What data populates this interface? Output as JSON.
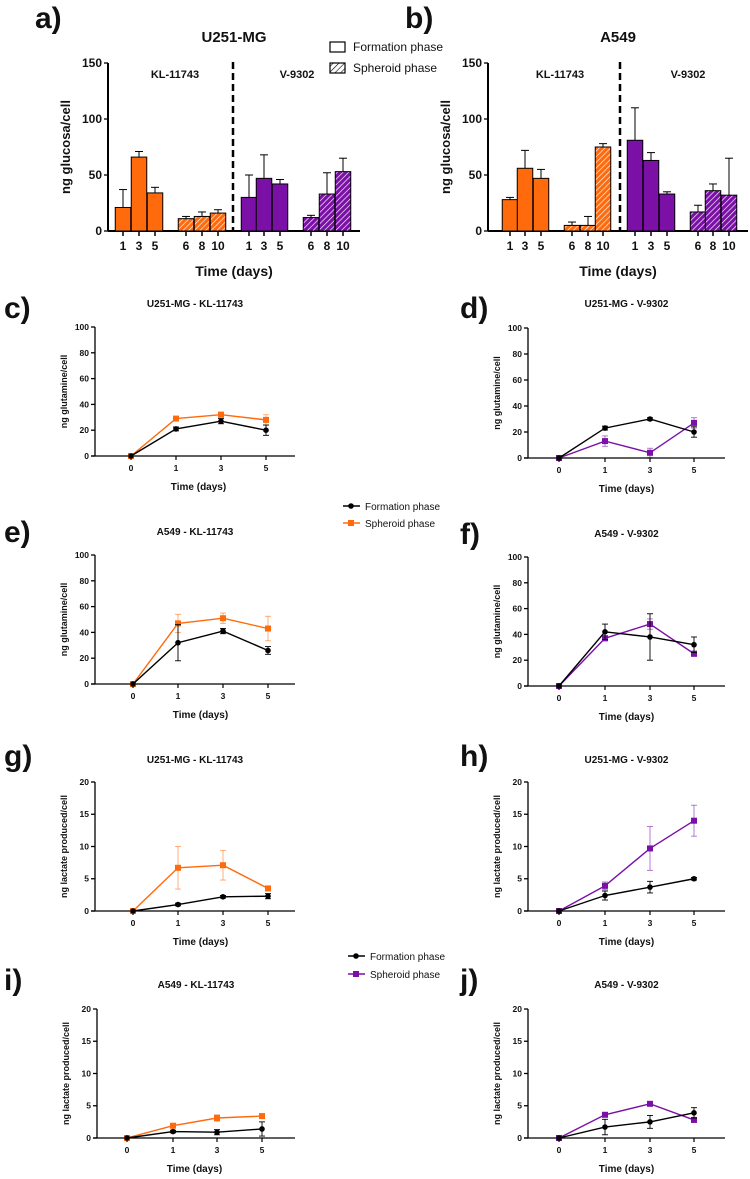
{
  "colors": {
    "orange": "#FF6A0D",
    "purple": "#7A10A6",
    "black": "#000000"
  },
  "legends": {
    "bars": {
      "items": [
        "Formation phase",
        "Spheroid phase"
      ],
      "fill": [
        "open",
        "hatched"
      ]
    },
    "glutamine": {
      "items": [
        "Formation phase",
        "Spheroid phase"
      ],
      "markers": [
        "circle",
        "square"
      ],
      "colors": [
        "#000000",
        "#FF6A0D"
      ]
    },
    "lactate": {
      "items": [
        "Formation phase",
        "Spheroid phase"
      ],
      "markers": [
        "circle",
        "square"
      ],
      "colors": [
        "#000000",
        "#7A10A6"
      ]
    }
  },
  "chart_data": [
    {
      "letter": "a)",
      "type": "bar",
      "title": "U251-MG",
      "ylabel": "ng glucosa/cell",
      "xlabel": "Time (days)",
      "ylim": [
        0,
        150
      ],
      "yticks": [
        0,
        50,
        100,
        150
      ],
      "groups": [
        {
          "label": "KL-11743",
          "color": "#FF6A0D",
          "phases": [
            {
              "phase": "Formation phase",
              "days": [
                1,
                3,
                5
              ],
              "values": [
                21,
                66,
                34
              ],
              "error_top": [
                37,
                71,
                39
              ]
            },
            {
              "phase": "Spheroid phase",
              "days": [
                6,
                8,
                10
              ],
              "values": [
                11,
                13,
                16
              ],
              "error_top": [
                13,
                17,
                19
              ]
            }
          ]
        },
        {
          "label": "V-9302",
          "color": "#7A10A6",
          "phases": [
            {
              "phase": "Formation phase",
              "days": [
                1,
                3,
                5
              ],
              "values": [
                30,
                47,
                42
              ],
              "error_top": [
                50,
                68,
                46
              ]
            },
            {
              "phase": "Spheroid phase",
              "days": [
                6,
                8,
                10
              ],
              "values": [
                12,
                33,
                53
              ],
              "error_top": [
                14,
                52,
                65
              ]
            }
          ]
        }
      ]
    },
    {
      "letter": "b)",
      "type": "bar",
      "title": "A549",
      "ylabel": "ng glucosa/cell",
      "xlabel": "Time (days)",
      "ylim": [
        0,
        150
      ],
      "yticks": [
        0,
        50,
        100,
        150
      ],
      "groups": [
        {
          "label": "KL-11743",
          "color": "#FF6A0D",
          "phases": [
            {
              "phase": "Formation phase",
              "days": [
                1,
                3,
                5
              ],
              "values": [
                28,
                56,
                47
              ],
              "error_top": [
                30,
                72,
                55
              ]
            },
            {
              "phase": "Spheroid phase",
              "days": [
                6,
                8,
                10
              ],
              "values": [
                5,
                5,
                75
              ],
              "error_top": [
                8,
                13,
                78
              ]
            }
          ]
        },
        {
          "label": "V-9302",
          "color": "#7A10A6",
          "phases": [
            {
              "phase": "Formation phase",
              "days": [
                1,
                3,
                5
              ],
              "values": [
                81,
                63,
                33
              ],
              "error_top": [
                110,
                70,
                35
              ]
            },
            {
              "phase": "Spheroid phase",
              "days": [
                6,
                8,
                10
              ],
              "values": [
                17,
                36,
                32
              ],
              "error_top": [
                23,
                42,
                65
              ]
            }
          ]
        }
      ]
    },
    {
      "letter": "c)",
      "type": "line",
      "title": "U251-MG - KL-11743",
      "ylabel": "ng glutamine/cell",
      "xlabel": "Time (days)",
      "ylim": [
        0,
        100
      ],
      "yticks": [
        0,
        20,
        40,
        60,
        80,
        100
      ],
      "x": [
        0,
        1,
        3,
        5
      ],
      "series": [
        {
          "name": "Formation phase",
          "color": "#000000",
          "values": [
            0,
            21,
            27,
            20
          ],
          "error": [
            0,
            1.5,
            2,
            4
          ]
        },
        {
          "name": "Spheroid phase",
          "color": "#FF6A0D",
          "values": [
            0,
            29,
            32,
            28
          ],
          "error": [
            0,
            1.5,
            2,
            4
          ]
        }
      ]
    },
    {
      "letter": "d)",
      "type": "line",
      "title": "U251-MG - V-9302",
      "ylabel": "ng glutamine/cell",
      "xlabel": "Time (days)",
      "ylim": [
        0,
        100
      ],
      "yticks": [
        0,
        20,
        40,
        60,
        80,
        100
      ],
      "x": [
        0,
        1,
        3,
        5
      ],
      "series": [
        {
          "name": "Formation phase",
          "color": "#000000",
          "values": [
            0,
            23,
            30,
            20
          ],
          "error": [
            0,
            1.5,
            1,
            4
          ]
        },
        {
          "name": "Spheroid phase",
          "color": "#7A10A6",
          "values": [
            0,
            13,
            4,
            27
          ],
          "error": [
            0,
            4,
            3.5,
            4
          ]
        }
      ]
    },
    {
      "letter": "e)",
      "type": "line",
      "title": "A549 - KL-11743",
      "ylabel": "ng glutamine/cell",
      "xlabel": "Time (days)",
      "ylim": [
        0,
        100
      ],
      "yticks": [
        0,
        20,
        40,
        60,
        80,
        100
      ],
      "x": [
        0,
        1,
        3,
        5
      ],
      "series": [
        {
          "name": "Formation phase",
          "color": "#000000",
          "values": [
            0,
            32,
            41,
            26
          ],
          "error": [
            0,
            14,
            2,
            3
          ]
        },
        {
          "name": "Spheroid phase",
          "color": "#FF6A0D",
          "values": [
            0,
            47,
            51,
            43
          ],
          "error": [
            0,
            7,
            4,
            9.5
          ]
        }
      ]
    },
    {
      "letter": "f)",
      "type": "line",
      "title": "A549 - V-9302",
      "ylabel": "ng glutamine/cell",
      "xlabel": "Time (days)",
      "ylim": [
        0,
        100
      ],
      "yticks": [
        0,
        20,
        40,
        60,
        80,
        100
      ],
      "x": [
        0,
        1,
        3,
        5
      ],
      "series": [
        {
          "name": "Formation phase",
          "color": "#000000",
          "values": [
            0,
            42,
            38,
            32
          ],
          "error": [
            0,
            6,
            18,
            6
          ]
        },
        {
          "name": "Spheroid phase",
          "color": "#7A10A6",
          "values": [
            0,
            37,
            48,
            25
          ],
          "error": [
            0,
            2,
            4,
            2
          ]
        }
      ]
    },
    {
      "letter": "g)",
      "type": "line",
      "title": "U251-MG - KL-11743",
      "ylabel": "ng lactate produced/cell",
      "xlabel": "Time (days)",
      "ylim": [
        0,
        20
      ],
      "yticks": [
        0,
        5,
        10,
        15,
        20
      ],
      "x": [
        0,
        1,
        3,
        5
      ],
      "series": [
        {
          "name": "Formation phase",
          "color": "#000000",
          "values": [
            0,
            1,
            2.2,
            2.3
          ],
          "error": [
            0,
            0.2,
            0.2,
            0.4
          ]
        },
        {
          "name": "Spheroid phase",
          "color": "#FF6A0D",
          "values": [
            0,
            6.7,
            7.1,
            3.5
          ],
          "error": [
            0,
            3.3,
            2.3,
            0.2
          ]
        }
      ]
    },
    {
      "letter": "h)",
      "type": "line",
      "title": "U251-MG - V-9302",
      "ylabel": "ng lactate produced/cell",
      "xlabel": "Time (days)",
      "ylim": [
        0,
        20
      ],
      "yticks": [
        0,
        5,
        10,
        15,
        20
      ],
      "x": [
        0,
        1,
        3,
        5
      ],
      "series": [
        {
          "name": "Formation phase",
          "color": "#000000",
          "values": [
            0,
            2.4,
            3.7,
            5
          ],
          "error": [
            0,
            0.7,
            0.9,
            0.2
          ]
        },
        {
          "name": "Spheroid phase",
          "color": "#7A10A6",
          "values": [
            0,
            3.9,
            9.7,
            14
          ],
          "error": [
            0,
            0.6,
            3.4,
            2.4
          ]
        }
      ]
    },
    {
      "letter": "i)",
      "type": "line",
      "title": "A549 - KL-11743",
      "ylabel": "ng lactate produced/cell",
      "xlabel": "Time (days)",
      "ylim": [
        0,
        20
      ],
      "yticks": [
        0,
        5,
        10,
        15,
        20
      ],
      "x": [
        0,
        1,
        3,
        5
      ],
      "series": [
        {
          "name": "Formation phase",
          "color": "#000000",
          "values": [
            0,
            1,
            0.9,
            1.4
          ],
          "error": [
            0,
            0.2,
            0.4,
            1.1
          ]
        },
        {
          "name": "Spheroid phase",
          "color": "#FF6A0D",
          "values": [
            0,
            1.9,
            3.1,
            3.4
          ],
          "error": [
            0,
            0.2,
            0.5,
            0.2
          ]
        }
      ]
    },
    {
      "letter": "j)",
      "type": "line",
      "title": "A549 - V-9302",
      "ylabel": "ng lactate produced/cell",
      "xlabel": "Time (days)",
      "ylim": [
        0,
        20
      ],
      "yticks": [
        0,
        5,
        10,
        15,
        20
      ],
      "x": [
        0,
        1,
        3,
        5
      ],
      "series": [
        {
          "name": "Formation phase",
          "color": "#000000",
          "values": [
            0,
            1.7,
            2.5,
            3.9
          ],
          "error": [
            0,
            1.2,
            1,
            0.8
          ]
        },
        {
          "name": "Spheroid phase",
          "color": "#7A10A6",
          "values": [
            0,
            3.6,
            5.3,
            2.8
          ],
          "error": [
            0,
            0.2,
            0.3,
            0.2
          ]
        }
      ]
    }
  ]
}
